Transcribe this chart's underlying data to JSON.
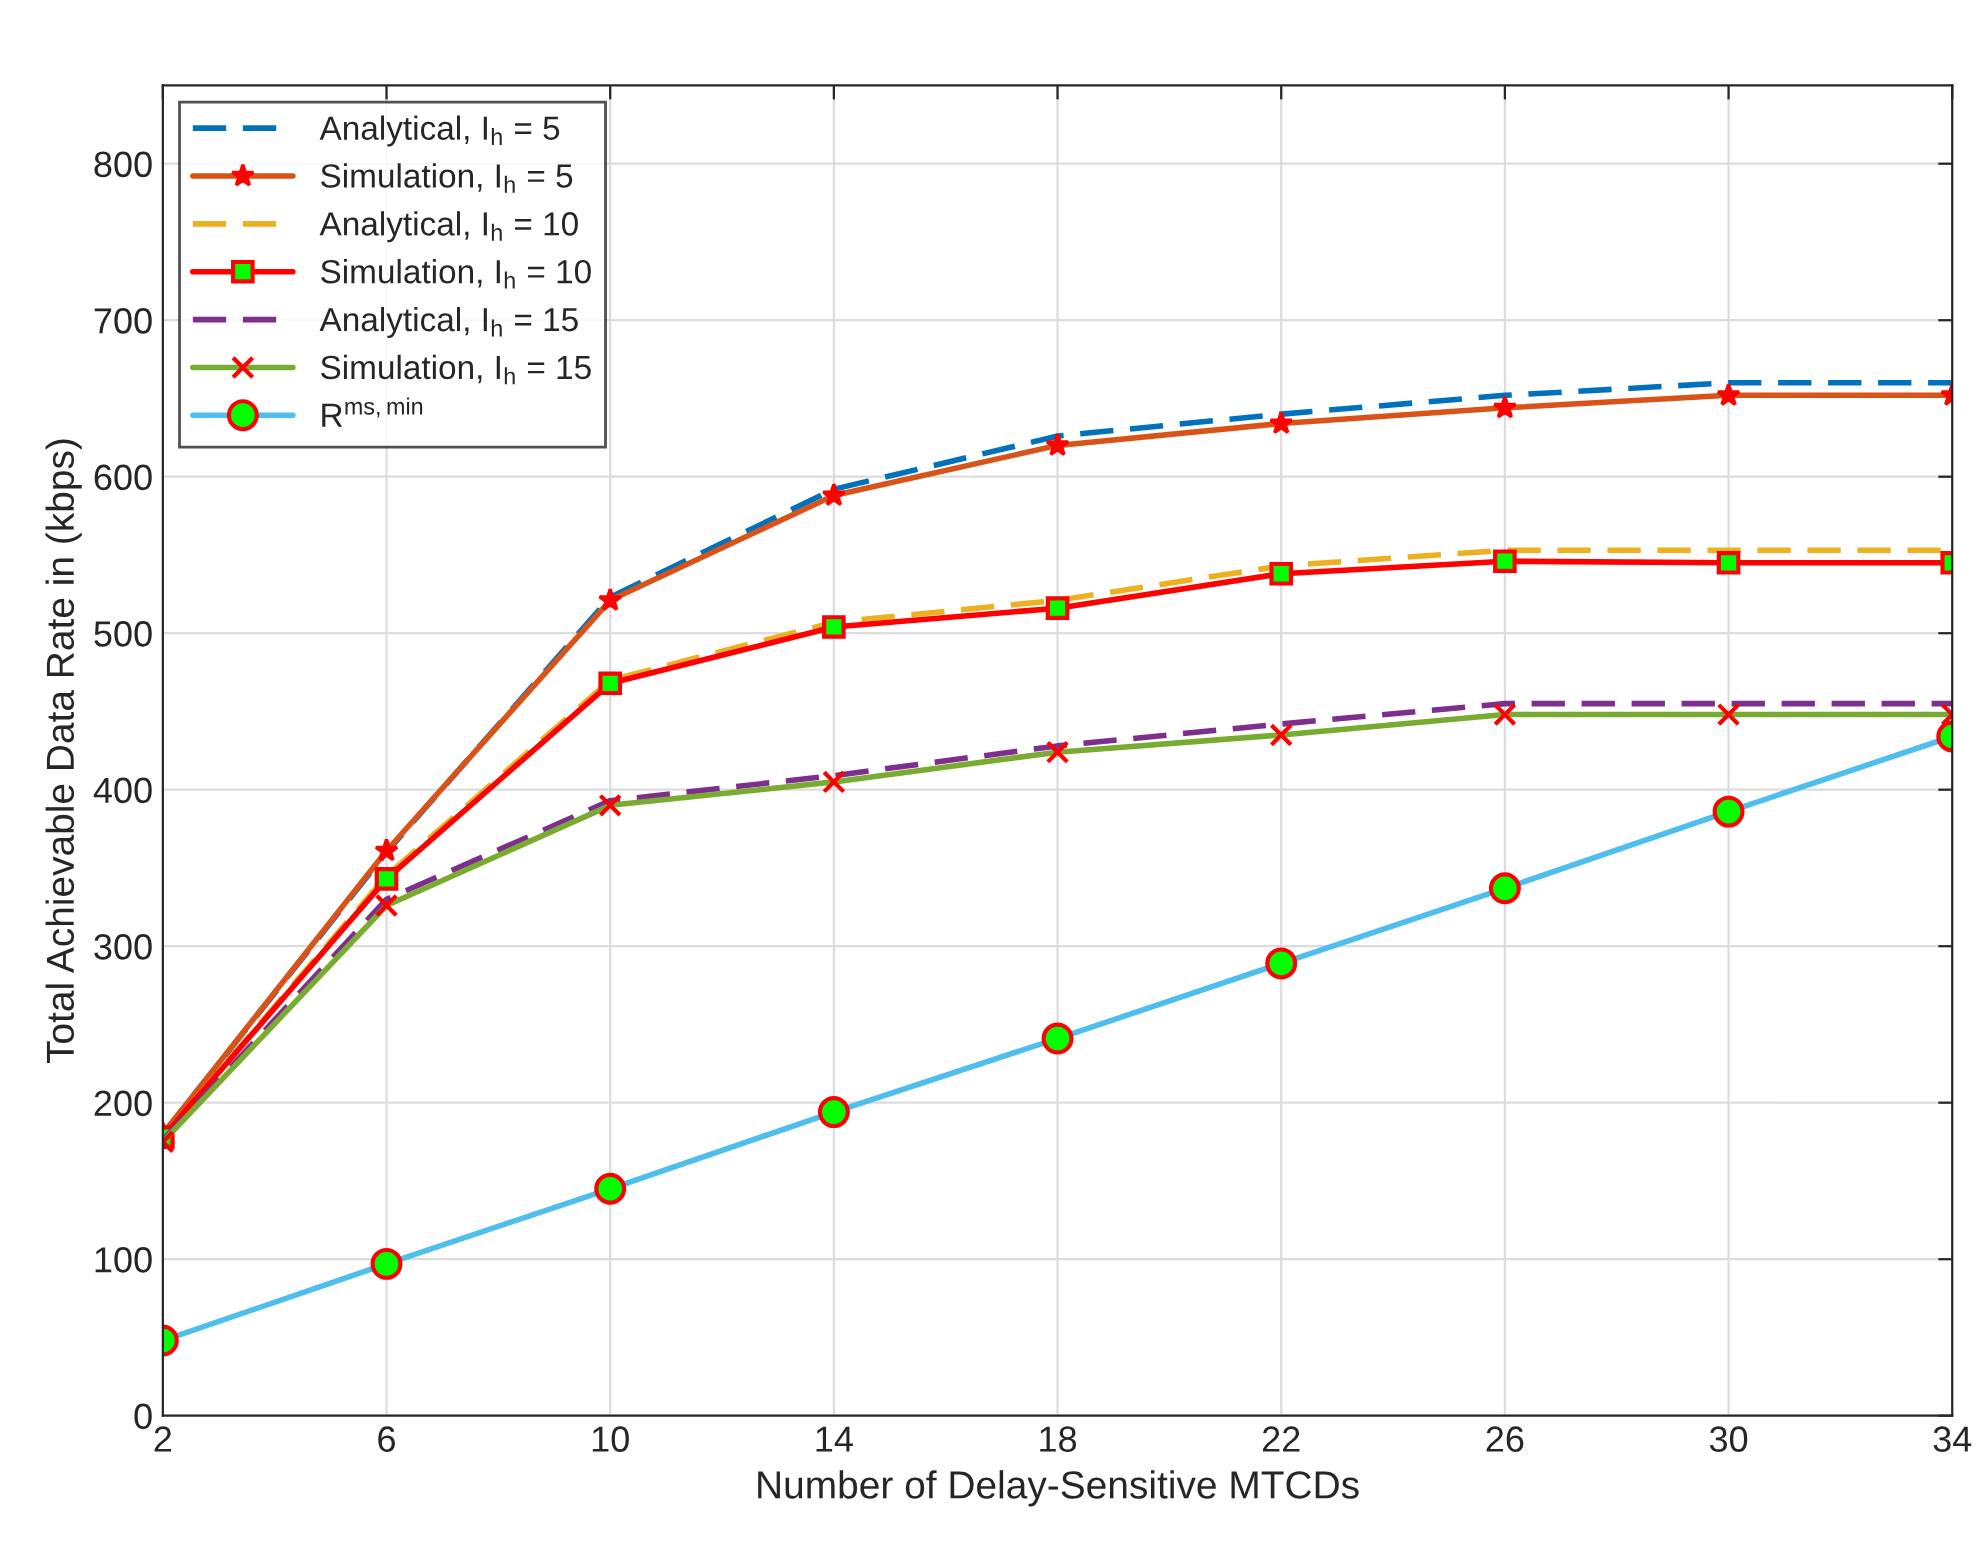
{
  "chart_data": {
    "type": "line",
    "xlabel": "Number of Delay-Sensitive MTCDs",
    "ylabel": "Total Achievable Data Rate in (kbps)",
    "x": [
      2,
      6,
      10,
      14,
      18,
      22,
      26,
      30,
      34
    ],
    "xlim": [
      2,
      34
    ],
    "xticks": [
      2,
      6,
      10,
      14,
      18,
      22,
      26,
      30,
      34
    ],
    "ylim": [
      0,
      850
    ],
    "yticks": [
      0,
      100,
      200,
      300,
      400,
      500,
      600,
      700,
      800
    ],
    "grid": true,
    "legend": "top left",
    "series": [
      {
        "name": "Analytical, I$_{h}$ = 5",
        "color": "#0072bd",
        "line_style": "dashed",
        "marker": "none",
        "values": [
          180,
          360,
          523,
          592,
          626,
          640,
          652,
          660,
          660
        ]
      },
      {
        "name": "Simulation, I$_{h}$ = 5",
        "color": "#d95319",
        "line_style": "solid",
        "marker": "star",
        "values": [
          180,
          361,
          521,
          588,
          620,
          634,
          644,
          652,
          652
        ]
      },
      {
        "name": "Analytical, I$_{h}$ = 10",
        "color": "#edb120",
        "line_style": "dashed",
        "marker": "none",
        "values": [
          178,
          345,
          470,
          507,
          521,
          543,
          553,
          553,
          553
        ]
      },
      {
        "name": "Simulation, I$_{h}$ = 10",
        "color": "#ff0000",
        "line_style": "solid",
        "marker": "square",
        "values": [
          178,
          343,
          468,
          504,
          516,
          538,
          546,
          545,
          545
        ]
      },
      {
        "name": "Analytical, I$_{h}$ = 15",
        "color": "#7e2f8e",
        "line_style": "dashed",
        "marker": "none",
        "values": [
          176,
          330,
          393,
          409,
          428,
          442,
          455,
          455,
          455
        ]
      },
      {
        "name": "Simulation, I$_{h}$ = 15",
        "color": "#77ac30",
        "line_style": "solid",
        "marker": "cross",
        "values": [
          175,
          326,
          390,
          405,
          424,
          435,
          448,
          448,
          448
        ]
      },
      {
        "name": "R$^{ms,min}$",
        "color": "#4dbeee",
        "line_style": "solid",
        "marker": "circle",
        "values": [
          48,
          97,
          145,
          194,
          241,
          289,
          337,
          386,
          434
        ]
      }
    ]
  }
}
